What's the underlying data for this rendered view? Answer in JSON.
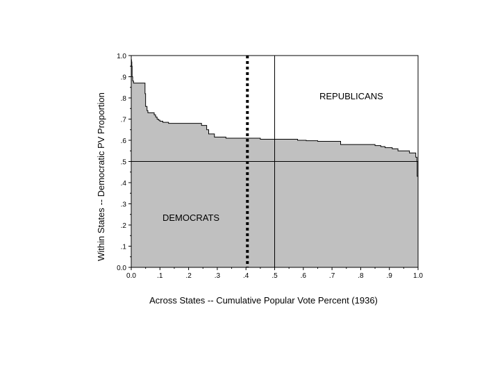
{
  "chart_data": {
    "type": "area",
    "xlabel": "Across States -- Cumulative Popular Vote Percent (1936)",
    "ylabel": "Within States -- Democratic PV Proportion",
    "xlim": [
      0,
      1
    ],
    "ylim": [
      0,
      1
    ],
    "x_tick_labels": [
      "0.0",
      ".1",
      ".2",
      ".3",
      ".4",
      ".5",
      ".6",
      ".7",
      ".8",
      ".9",
      "1.0"
    ],
    "y_tick_labels": [
      "0.0",
      ".1",
      ".2",
      ".3",
      ".4",
      ".5",
      ".6",
      ".7",
      ".8",
      ".9",
      "1.0"
    ],
    "x_ticks": [
      0,
      0.1,
      0.2,
      0.3,
      0.4,
      0.5,
      0.6,
      0.7,
      0.8,
      0.9,
      1.0
    ],
    "y_ticks": [
      0,
      0.1,
      0.2,
      0.3,
      0.4,
      0.5,
      0.6,
      0.7,
      0.8,
      0.9,
      1.0
    ],
    "annotations": {
      "upper": "REPUBLICANS",
      "lower": "DEMOCRATS"
    },
    "reference_lines": {
      "horizontal_y": 0.5,
      "vertical_solid_x": 0.5,
      "vertical_dotted_x": 0.405
    },
    "fill_color": "#c0c0c0",
    "series": [
      {
        "x": [
          0.0,
          0.001,
          0.002,
          0.003,
          0.005,
          0.008,
          0.035,
          0.045,
          0.048,
          0.05,
          0.052,
          0.055,
          0.058,
          0.075,
          0.08,
          0.085,
          0.09,
          0.095,
          0.1,
          0.11,
          0.13,
          0.14,
          0.16,
          0.2,
          0.23,
          0.245,
          0.26,
          0.263,
          0.27,
          0.29,
          0.33,
          0.4,
          0.45,
          0.48,
          0.5,
          0.54,
          0.58,
          0.61,
          0.65,
          0.7,
          0.73,
          0.8,
          0.83,
          0.85,
          0.865,
          0.87,
          0.885,
          0.91,
          0.93,
          0.95,
          0.97,
          0.98,
          0.99,
          0.992,
          0.996,
          0.997,
          1.0
        ],
        "y": [
          0.98,
          0.97,
          0.95,
          0.9,
          0.88,
          0.87,
          0.87,
          0.87,
          0.82,
          0.76,
          0.76,
          0.74,
          0.73,
          0.73,
          0.72,
          0.71,
          0.7,
          0.695,
          0.69,
          0.685,
          0.68,
          0.68,
          0.68,
          0.68,
          0.68,
          0.67,
          0.67,
          0.65,
          0.63,
          0.615,
          0.61,
          0.61,
          0.605,
          0.605,
          0.605,
          0.605,
          0.6,
          0.598,
          0.595,
          0.595,
          0.58,
          0.58,
          0.58,
          0.575,
          0.575,
          0.57,
          0.565,
          0.56,
          0.55,
          0.55,
          0.54,
          0.54,
          0.54,
          0.52,
          0.5,
          0.43,
          0.42
        ]
      }
    ]
  }
}
